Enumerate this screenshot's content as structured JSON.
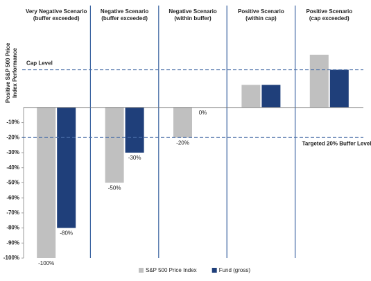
{
  "chart_data": {
    "type": "bar",
    "y_label": [
      "Positive S&P 500 Price",
      "Index Performance"
    ],
    "categories": [
      [
        "Very Negative Scenario",
        "(buffer exceeded)"
      ],
      [
        "Negative Scenario",
        "(buffer exceeded)"
      ],
      [
        "Negative Scenario",
        "(within buffer)"
      ],
      [
        "Positive Scenario",
        "(within cap)"
      ],
      [
        "Positive Scenario",
        "(cap exceeded)"
      ]
    ],
    "series": [
      {
        "name": "S&P 500 Price Index",
        "color": "#c0c0c0",
        "values": [
          -100,
          -50,
          -20,
          15,
          35
        ],
        "value_labels": [
          "-100%",
          "-50%",
          "-20%",
          null,
          null
        ]
      },
      {
        "name": "Fund (gross)",
        "color": "#1f3f7a",
        "values": [
          -80,
          -30,
          0,
          15,
          25
        ],
        "value_labels": [
          "-80%",
          "-30%",
          "0%",
          null,
          null
        ]
      }
    ],
    "reference_lines": [
      {
        "label": "Cap Level",
        "value": 25
      },
      {
        "label": "Targeted 20% Buffer Level",
        "value": -20
      }
    ],
    "ylim": [
      -100,
      40
    ],
    "yticks": [
      {
        "value": -10,
        "label": "-10%"
      },
      {
        "value": -20,
        "label": "-20%"
      },
      {
        "value": -30,
        "label": "-30%"
      },
      {
        "value": -40,
        "label": "-40%"
      },
      {
        "value": -50,
        "label": "-50%"
      },
      {
        "value": -60,
        "label": "-60%"
      },
      {
        "value": -70,
        "label": "-70%"
      },
      {
        "value": -80,
        "label": "-80%"
      },
      {
        "value": -90,
        "label": "-90%"
      },
      {
        "value": -100,
        "label": "-100%"
      }
    ],
    "legend": "bottom"
  }
}
